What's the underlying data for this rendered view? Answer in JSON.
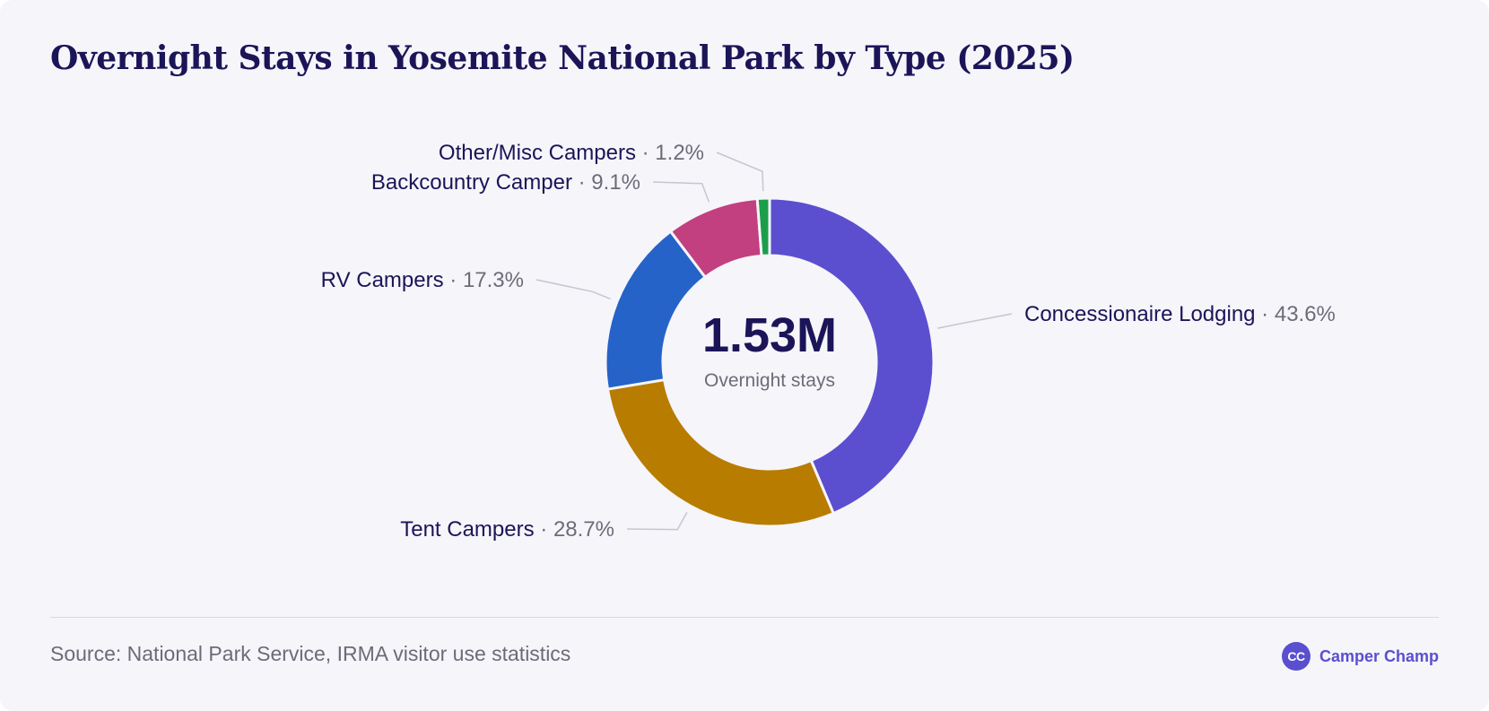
{
  "header": {
    "title": "Overnight Stays in Yosemite National Park by Type (2025)"
  },
  "chart_data": {
    "type": "pie",
    "title": "Overnight Stays in Yosemite National Park by Type (2025)",
    "total_label": "1.53M",
    "total_caption": "Overnight stays",
    "slices": [
      {
        "label": "Concessionaire Lodging",
        "value": 43.6,
        "value_label": "43.6%",
        "color": "#5b4fcf"
      },
      {
        "label": "Tent Campers",
        "value": 28.7,
        "value_label": "28.7%",
        "color": "#b87c00"
      },
      {
        "label": "RV Campers",
        "value": 17.3,
        "value_label": "17.3%",
        "color": "#2563c9"
      },
      {
        "label": "Backcountry Camper",
        "value": 9.1,
        "value_label": "9.1%",
        "color": "#c2407f"
      },
      {
        "label": "Other/Misc Campers",
        "value": 1.2,
        "value_label": "1.2%",
        "color": "#1a9e4a"
      }
    ],
    "separator": "·"
  },
  "footer": {
    "source": "Source: National Park Service, IRMA visitor use statistics",
    "brand_logo_text": "CC",
    "brand_name": "Camper Champ"
  }
}
